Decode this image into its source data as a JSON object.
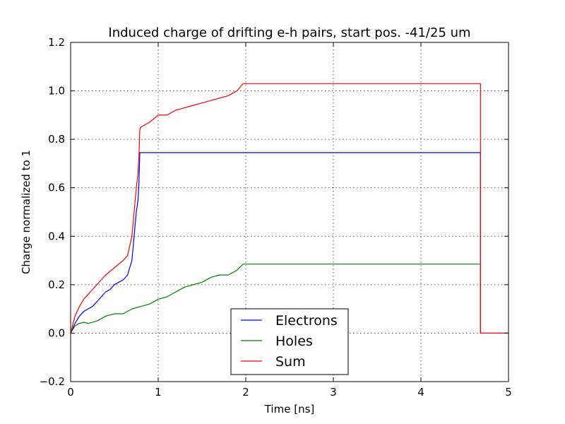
{
  "chart_data": {
    "type": "line",
    "title": "Induced charge of drifting e-h pairs, start pos. -41/25 um",
    "xlabel": "Time [ns]",
    "ylabel": "Charge normalized to 1",
    "xlim": [
      0,
      5
    ],
    "ylim": [
      -0.2,
      1.2
    ],
    "x_ticks": [
      0,
      1,
      2,
      3,
      4,
      5
    ],
    "x_tick_labels": [
      "0",
      "1",
      "2",
      "3",
      "4",
      "5"
    ],
    "y_ticks": [
      -0.2,
      0.0,
      0.2,
      0.4,
      0.6,
      0.8,
      1.0,
      1.2
    ],
    "y_tick_labels": [
      "−0.2",
      "0.0",
      "0.2",
      "0.4",
      "0.6",
      "0.8",
      "1.0",
      "1.2"
    ],
    "grid": true,
    "legend_position": "lower-center",
    "series": [
      {
        "name": "Electrons",
        "color": "#0000ff",
        "x": [
          0,
          0.05,
          0.1,
          0.15,
          0.2,
          0.25,
          0.3,
          0.35,
          0.4,
          0.45,
          0.5,
          0.55,
          0.6,
          0.65,
          0.7,
          0.73,
          0.75,
          0.77,
          0.78,
          0.79,
          1.0,
          2.0,
          3.0,
          4.0,
          4.68,
          4.68,
          5.0
        ],
        "y": [
          0.0,
          0.04,
          0.07,
          0.09,
          0.1,
          0.11,
          0.13,
          0.15,
          0.17,
          0.18,
          0.2,
          0.21,
          0.22,
          0.24,
          0.3,
          0.42,
          0.5,
          0.55,
          0.62,
          0.745,
          0.745,
          0.745,
          0.745,
          0.745,
          0.745,
          0.0,
          0.0
        ]
      },
      {
        "name": "Holes",
        "color": "#008000",
        "x": [
          0,
          0.05,
          0.1,
          0.15,
          0.2,
          0.3,
          0.4,
          0.5,
          0.6,
          0.7,
          0.8,
          0.9,
          1.0,
          1.1,
          1.2,
          1.3,
          1.4,
          1.5,
          1.6,
          1.7,
          1.8,
          1.9,
          1.97,
          2.0,
          3.0,
          4.0,
          4.68,
          4.68,
          5.0
        ],
        "y": [
          0.0,
          0.03,
          0.04,
          0.045,
          0.04,
          0.05,
          0.07,
          0.08,
          0.08,
          0.1,
          0.11,
          0.12,
          0.14,
          0.15,
          0.17,
          0.19,
          0.2,
          0.21,
          0.23,
          0.24,
          0.24,
          0.26,
          0.285,
          0.285,
          0.285,
          0.285,
          0.285,
          0.0,
          0.0
        ]
      },
      {
        "name": "Sum",
        "color": "#ff0000",
        "x": [
          0,
          0.05,
          0.1,
          0.15,
          0.2,
          0.3,
          0.4,
          0.5,
          0.6,
          0.65,
          0.7,
          0.73,
          0.75,
          0.77,
          0.78,
          0.79,
          0.8,
          0.9,
          1.0,
          1.1,
          1.2,
          1.3,
          1.4,
          1.5,
          1.6,
          1.7,
          1.8,
          1.9,
          1.97,
          2.0,
          3.0,
          4.0,
          4.68,
          4.68,
          5.0
        ],
        "y": [
          0.0,
          0.07,
          0.11,
          0.14,
          0.16,
          0.2,
          0.24,
          0.27,
          0.3,
          0.32,
          0.4,
          0.52,
          0.6,
          0.66,
          0.73,
          0.84,
          0.85,
          0.87,
          0.9,
          0.9,
          0.92,
          0.93,
          0.94,
          0.95,
          0.96,
          0.97,
          0.98,
          1.0,
          1.03,
          1.03,
          1.03,
          1.03,
          1.03,
          0.0,
          0.0
        ]
      }
    ]
  }
}
